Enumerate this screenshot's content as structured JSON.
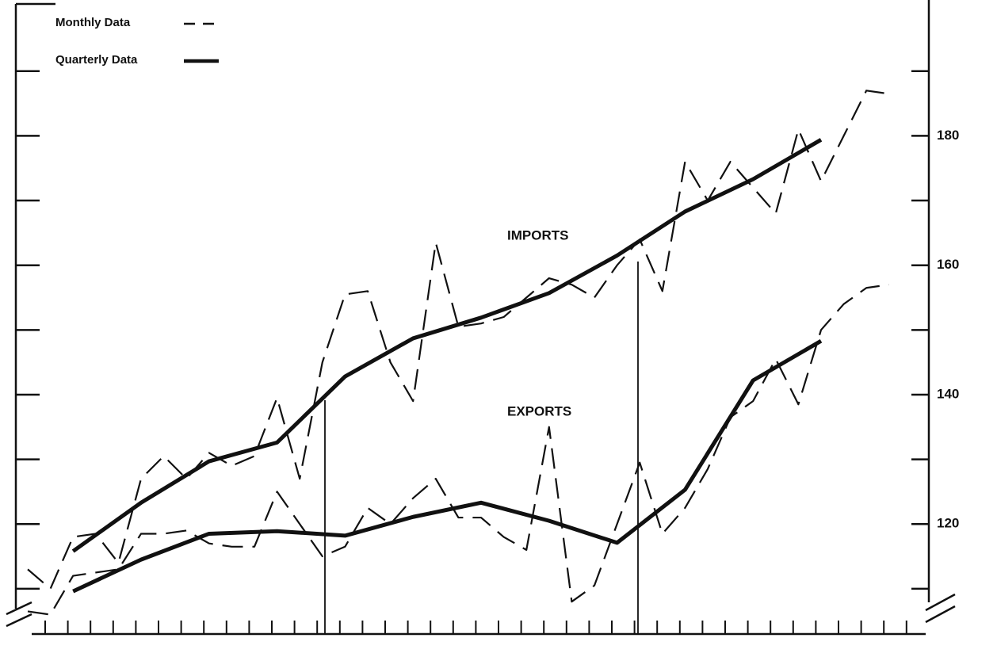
{
  "chart_data": {
    "type": "line",
    "legend": [
      {
        "label": "Monthly Data",
        "style": "dashed"
      },
      {
        "label": "Quarterly Data",
        "style": "solid"
      }
    ],
    "color": "#111111",
    "categories": [
      null,
      null,
      null,
      null,
      null,
      null,
      null,
      null,
      null,
      null,
      null,
      null,
      null,
      null,
      null,
      null,
      null,
      null,
      null,
      null,
      null,
      null,
      null,
      null,
      null,
      null,
      null,
      null,
      null,
      null,
      null,
      null,
      null,
      null,
      null,
      null,
      null,
      null,
      null
    ],
    "quarter_categories": [
      null,
      null,
      null,
      null,
      null,
      null,
      null,
      null,
      null,
      null,
      null,
      null
    ],
    "series": [
      {
        "name": "IMPORTS",
        "monthly": [
          113,
          110,
          118,
          118.5,
          114,
          127,
          130.5,
          127,
          131,
          129,
          130.5,
          139.5,
          127,
          145,
          155.5,
          156,
          145,
          139,
          163.5,
          150.5,
          151,
          152,
          155,
          158,
          157,
          155,
          160,
          164,
          156,
          176,
          170,
          176,
          172,
          168,
          181,
          173,
          180,
          187,
          186.5
        ],
        "quarterly": [
          115.8,
          123.3,
          129.7,
          132.6,
          142.8,
          148.7,
          151.9,
          155.7,
          161.5,
          168.3,
          173.3,
          179.4
        ]
      },
      {
        "name": "EXPORTS",
        "monthly": [
          106.5,
          106,
          112,
          112.5,
          113,
          118.5,
          118.5,
          119,
          117,
          116.5,
          116.5,
          125,
          120,
          115,
          116.5,
          122.5,
          120,
          124,
          127,
          121,
          121,
          118,
          116,
          135,
          108,
          110.5,
          120,
          129.5,
          118.5,
          122.5,
          128.5,
          136.5,
          139,
          145.5,
          138.5,
          150,
          154,
          156.5,
          157
        ],
        "quarterly": [
          109.6,
          114.5,
          118.5,
          118.9,
          118.2,
          121.1,
          123.3,
          120.5,
          117.1,
          125.3,
          142.2,
          148.3
        ]
      }
    ],
    "ylim": [
      103,
      201
    ],
    "yticks": [
      120,
      140,
      160,
      180
    ],
    "yminor_ticks": [
      110,
      130,
      150,
      170,
      190
    ]
  }
}
